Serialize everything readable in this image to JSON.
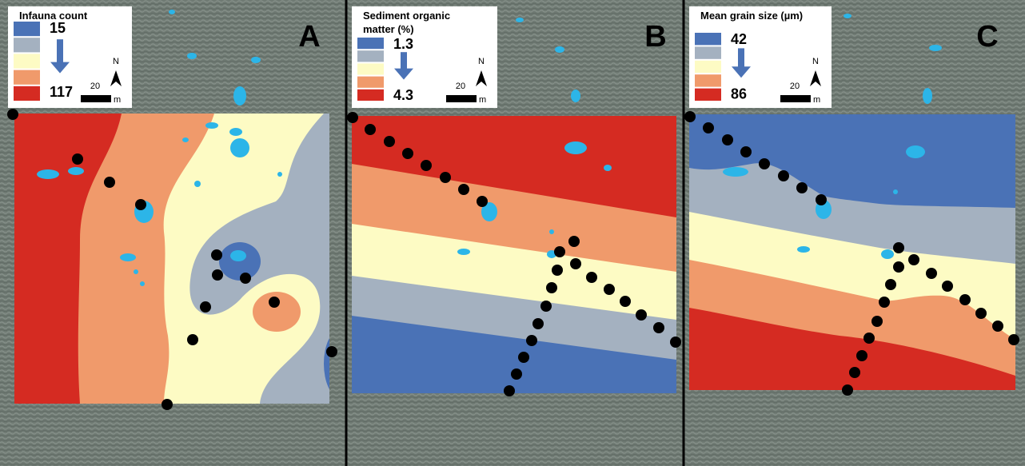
{
  "panels": [
    {
      "label": "A",
      "legend_title": [
        "Infauna count"
      ],
      "legend_min": "15",
      "legend_max": "117",
      "north": "N",
      "scale": "20",
      "scale_unit": "m"
    },
    {
      "label": "B",
      "legend_title": [
        "Sediment organic",
        "matter (%)"
      ],
      "legend_min": "1.3",
      "legend_max": "4.3",
      "north": "N",
      "scale": "20",
      "scale_unit": "m"
    },
    {
      "label": "C",
      "legend_title": [
        "Mean grain size (µm)"
      ],
      "legend_min": "42",
      "legend_max": "86",
      "north": "N",
      "scale": "20",
      "scale_unit": "m"
    }
  ]
}
